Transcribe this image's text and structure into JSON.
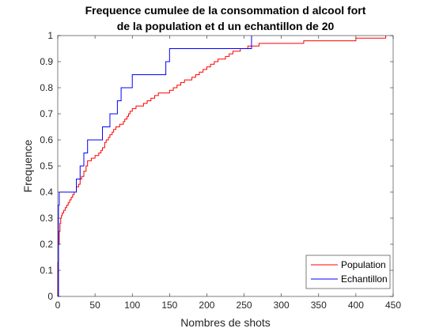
{
  "chart_data": {
    "type": "line",
    "step": true,
    "title_lines": [
      "Frequence cumulee de la consommation d alcool fort",
      "de la population et d un echantillon de 20"
    ],
    "xlabel": "Nombres de shots",
    "ylabel": "Frequence",
    "xlim": [
      0,
      450
    ],
    "ylim": [
      0,
      1
    ],
    "xticks": [
      0,
      50,
      100,
      150,
      200,
      250,
      300,
      350,
      400,
      450
    ],
    "xtick_labels": [
      "0",
      "50",
      "100",
      "150",
      "200",
      "250",
      "300",
      "350",
      "400",
      "450"
    ],
    "yticks": [
      0,
      0.1,
      0.2,
      0.3,
      0.4,
      0.5,
      0.6,
      0.7,
      0.8,
      0.9,
      1
    ],
    "ytick_labels": [
      "0",
      "0.1",
      "0.2",
      "0.3",
      "0.4",
      "0.5",
      "0.6",
      "0.7",
      "0.8",
      "0.9",
      "1"
    ],
    "grid": false,
    "box": true,
    "legend_position": "bottom-right",
    "series": [
      {
        "name": "Population",
        "color": "#ff0000",
        "x": [
          0,
          0,
          1,
          2,
          3,
          4,
          5,
          6,
          8,
          10,
          12,
          14,
          16,
          18,
          20,
          22,
          25,
          28,
          30,
          32,
          35,
          38,
          40,
          45,
          50,
          55,
          58,
          60,
          63,
          65,
          68,
          70,
          73,
          75,
          78,
          80,
          83,
          85,
          88,
          90,
          93,
          95,
          97,
          100,
          105,
          110,
          115,
          120,
          125,
          130,
          135,
          140,
          145,
          150,
          155,
          160,
          165,
          170,
          175,
          180,
          185,
          190,
          195,
          200,
          205,
          210,
          215,
          220,
          225,
          230,
          235,
          240,
          245,
          250,
          255,
          260,
          270,
          280,
          300,
          330,
          360,
          400,
          420,
          440
        ],
        "y": [
          0,
          0.13,
          0.2,
          0.25,
          0.28,
          0.3,
          0.31,
          0.32,
          0.33,
          0.34,
          0.35,
          0.36,
          0.37,
          0.38,
          0.39,
          0.4,
          0.42,
          0.43,
          0.45,
          0.46,
          0.48,
          0.5,
          0.52,
          0.53,
          0.54,
          0.55,
          0.56,
          0.57,
          0.59,
          0.6,
          0.61,
          0.62,
          0.63,
          0.64,
          0.65,
          0.65,
          0.66,
          0.66,
          0.67,
          0.68,
          0.69,
          0.7,
          0.71,
          0.72,
          0.73,
          0.73,
          0.74,
          0.75,
          0.76,
          0.77,
          0.78,
          0.78,
          0.78,
          0.79,
          0.8,
          0.81,
          0.82,
          0.83,
          0.83,
          0.84,
          0.85,
          0.86,
          0.87,
          0.88,
          0.89,
          0.9,
          0.91,
          0.91,
          0.92,
          0.93,
          0.94,
          0.94,
          0.95,
          0.95,
          0.96,
          0.96,
          0.97,
          0.97,
          0.97,
          0.98,
          0.98,
          0.99,
          0.99,
          1.0
        ]
      },
      {
        "name": "Echantillon",
        "color": "#0000ff",
        "x": [
          0,
          1,
          2,
          3,
          25,
          30,
          35,
          40,
          50,
          60,
          70,
          80,
          85,
          88,
          100,
          145,
          150,
          255,
          260
        ],
        "y": [
          0,
          0.35,
          0.4,
          0.4,
          0.45,
          0.5,
          0.55,
          0.6,
          0.6,
          0.65,
          0.7,
          0.75,
          0.8,
          0.8,
          0.85,
          0.9,
          0.95,
          0.95,
          1.0
        ]
      }
    ]
  }
}
